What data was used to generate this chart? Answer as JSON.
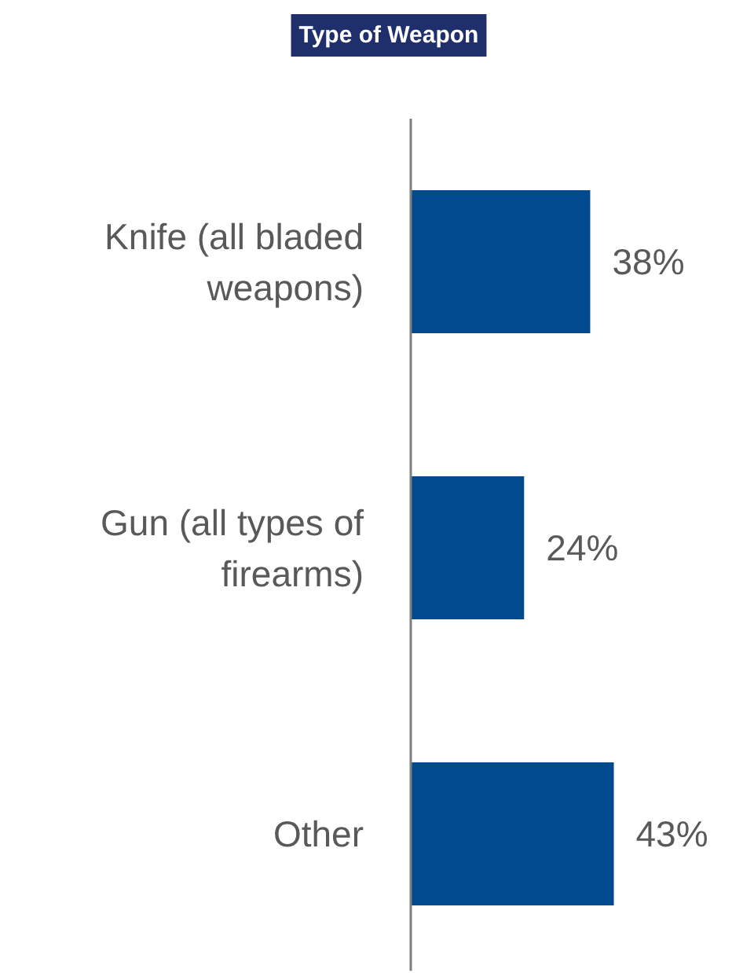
{
  "chart_data": {
    "type": "bar",
    "orientation": "horizontal",
    "title": "Type of Weapon",
    "categories": [
      "Knife (all bladed weapons)",
      "Gun (all types of firearms)",
      "Other"
    ],
    "values": [
      38,
      24,
      43
    ],
    "color": "#004a8d",
    "data_labels": true,
    "value_labels": [
      "38%",
      "24%",
      "43%"
    ],
    "grid": false
  }
}
